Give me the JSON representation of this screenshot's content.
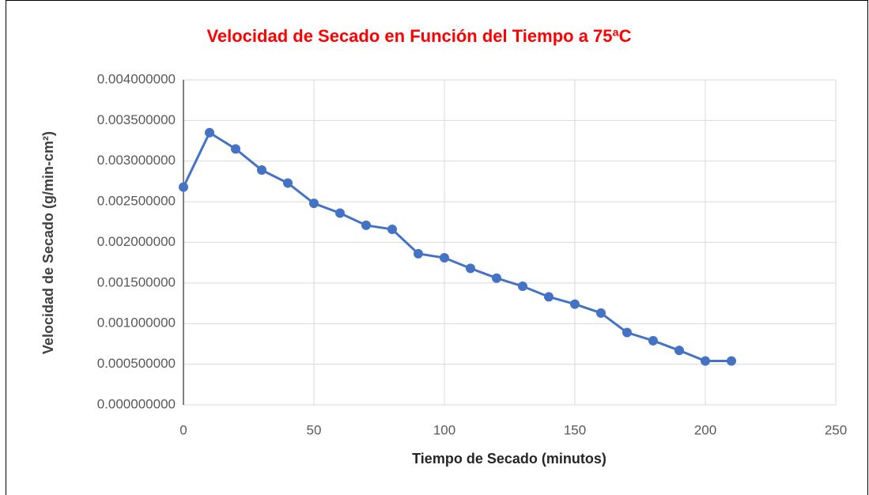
{
  "chart_data": {
    "type": "line",
    "title": "Velocidad de Secado en Función del Tiempo a 75ªC",
    "x_label": "Tiempo de Secado  (minutos)",
    "y_label": "Velocidad de Secado (g/min-cm²)",
    "x": [
      0,
      10,
      20,
      30,
      40,
      50,
      60,
      70,
      80,
      90,
      100,
      110,
      120,
      130,
      140,
      150,
      160,
      170,
      180,
      190,
      200,
      210
    ],
    "series": [
      {
        "color": "#4472c4",
        "values": [
          0.00268,
          0.00335,
          0.00315,
          0.00289,
          0.00273,
          0.00248,
          0.00236,
          0.00221,
          0.00216,
          0.00186,
          0.00181,
          0.00168,
          0.00156,
          0.00146,
          0.00133,
          0.00124,
          0.00113,
          0.00089,
          0.00079,
          0.00067,
          0.00054,
          0.00054
        ]
      }
    ],
    "xlim": [
      0,
      250
    ],
    "xticks": [
      0,
      50,
      100,
      150,
      200,
      250
    ],
    "ylim": [
      0,
      0.004
    ],
    "yticks": [
      {
        "value": 0,
        "label": "0.000000000"
      },
      {
        "value": 0.0005,
        "label": "0.000500000"
      },
      {
        "value": 0.001,
        "label": "0.001000000"
      },
      {
        "value": 0.0015,
        "label": "0.001500000"
      },
      {
        "value": 0.002,
        "label": "0.002000000"
      },
      {
        "value": 0.0025,
        "label": "0.002500000"
      },
      {
        "value": 0.003,
        "label": "0.003000000"
      },
      {
        "value": 0.0035,
        "label": "0.003500000"
      },
      {
        "value": 0.004,
        "label": "0.004000000"
      }
    ],
    "grid": true
  }
}
